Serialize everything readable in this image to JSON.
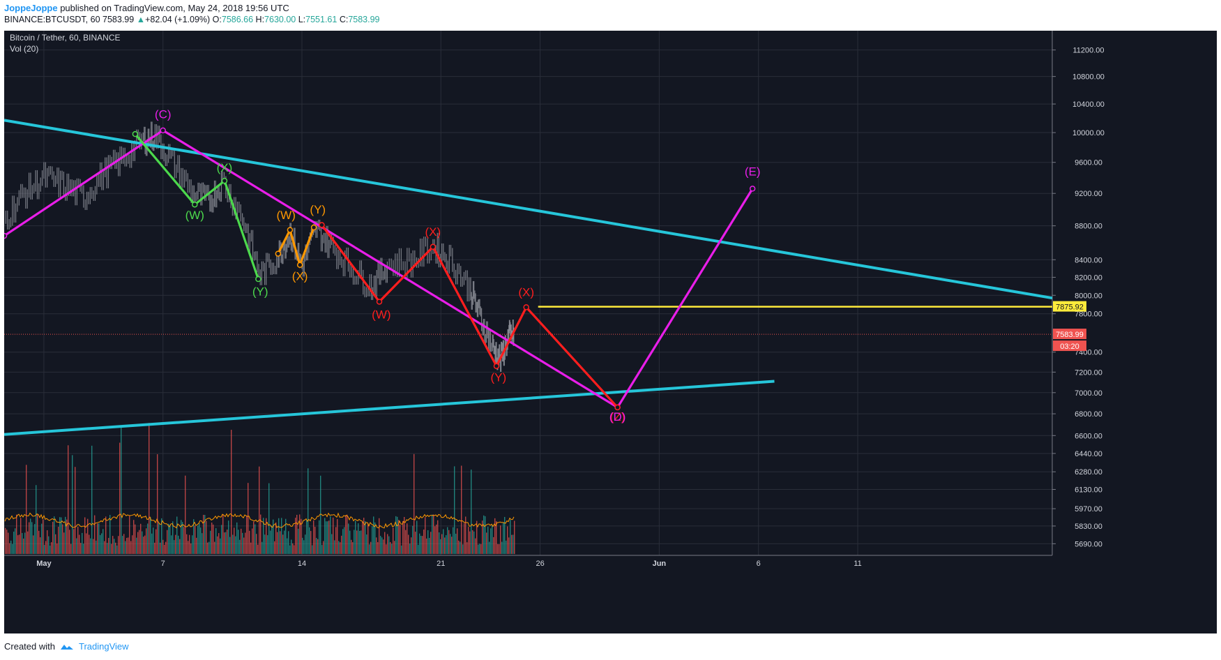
{
  "header": {
    "author": "JoppeJoppe",
    "published": "published on TradingView.com, May 24, 2018 19:56 UTC",
    "symbol": "BINANCE:BTCUSDT, 60",
    "last": "7583.99",
    "change_arrow": "▲",
    "change": "+82.04 (+1.09%)",
    "o_label": "O:",
    "o": "7586.66",
    "h_label": "H:",
    "h": "7630.00",
    "l_label": "L:",
    "l": "7551.61",
    "c_label": "C:",
    "c": "7583.99"
  },
  "chart_data": {
    "type": "line",
    "title": "Bitcoin / Tether, 60, BINANCE",
    "indicator": "Vol (20)",
    "background": "#131722",
    "grid": true,
    "y_axis": {
      "scale": "log",
      "range": [
        5600,
        11500
      ],
      "ticks": [
        11200,
        10800,
        10400,
        10000,
        9600,
        9200,
        8800,
        8400,
        8200,
        8000,
        7800,
        7400,
        7200,
        7000,
        6800,
        6600,
        6440,
        6280,
        6130,
        5970,
        5830,
        5690
      ],
      "tick_labels": [
        "11200.00",
        "10800.00",
        "10400.00",
        "10000.00",
        "9600.00",
        "9200.00",
        "8800.00",
        "8400.00",
        "8200.00",
        "8000.00",
        "7800.00",
        "7400.00",
        "7200.00",
        "7000.00",
        "6800.00",
        "6600.00",
        "6440.00",
        "6280.00",
        "6130.00",
        "5970.00",
        "5830.00",
        "5690.00"
      ]
    },
    "x_axis": {
      "unit": "days from May 1, 2018",
      "range": [
        -2.0,
        50.8
      ],
      "ticks": [
        {
          "x": 0,
          "label": "May",
          "bold": true
        },
        {
          "x": 6,
          "label": "7"
        },
        {
          "x": 13,
          "label": "14"
        },
        {
          "x": 20,
          "label": "21"
        },
        {
          "x": 25,
          "label": "26"
        },
        {
          "x": 31,
          "label": "Jun",
          "bold": true
        },
        {
          "x": 36,
          "label": "6"
        },
        {
          "x": 41,
          "label": "11"
        }
      ]
    },
    "price_markers": {
      "hline": {
        "value": 7875.92,
        "label": "7875.92",
        "color": "#ffeb3b"
      },
      "last": {
        "value": 7583.99,
        "label": "7583.99",
        "countdown": "03:20",
        "color": "#ef5350"
      }
    },
    "series": [
      {
        "id": "trend_upper",
        "color": "#26c6da",
        "points": [
          [
            -2.0,
            10170
          ],
          [
            50.8,
            7970
          ]
        ]
      },
      {
        "id": "trend_lower",
        "color": "#26c6da",
        "points": [
          [
            -2.0,
            6610
          ],
          [
            36.8,
            7110
          ]
        ]
      },
      {
        "id": "yellow_line",
        "color": "#ffeb3b",
        "points": [
          [
            24.9,
            7875.92
          ],
          [
            50.8,
            7875.92
          ]
        ]
      },
      {
        "id": "wave_magenta",
        "color": "#e91ee9",
        "points": [
          [
            -2.0,
            8680
          ],
          [
            6.0,
            10030
          ],
          [
            28.9,
            6860
          ],
          [
            35.7,
            9260
          ]
        ]
      },
      {
        "id": "wave_green",
        "color": "#4cd94c",
        "points": [
          [
            4.6,
            9980
          ],
          [
            7.6,
            9060
          ],
          [
            9.1,
            9360
          ],
          [
            10.8,
            8180
          ]
        ]
      },
      {
        "id": "wave_orange",
        "color": "#ff9800",
        "points": [
          [
            11.8,
            8470
          ],
          [
            12.4,
            8750
          ],
          [
            12.9,
            8340
          ],
          [
            13.6,
            8780
          ]
        ]
      },
      {
        "id": "wave_red",
        "color": "#ff1e1e",
        "points": [
          [
            14.0,
            8810
          ],
          [
            16.9,
            7930
          ],
          [
            19.6,
            8550
          ],
          [
            22.8,
            7260
          ],
          [
            24.3,
            7870
          ],
          [
            28.9,
            6860
          ]
        ]
      },
      {
        "id": "price",
        "color": "#b2b5be",
        "points": [
          [
            -2.0,
            8880
          ],
          [
            -1.0,
            9200
          ],
          [
            0.0,
            9400
          ],
          [
            1.0,
            9300
          ],
          [
            2.0,
            9150
          ],
          [
            3.0,
            9450
          ],
          [
            4.0,
            9650
          ],
          [
            5.0,
            9900
          ],
          [
            5.6,
            9960
          ],
          [
            6.5,
            9600
          ],
          [
            7.5,
            9200
          ],
          [
            8.3,
            9100
          ],
          [
            9.0,
            9350
          ],
          [
            10.0,
            8900
          ],
          [
            10.9,
            8220
          ],
          [
            11.8,
            8450
          ],
          [
            12.4,
            8720
          ],
          [
            13.0,
            8330
          ],
          [
            13.7,
            8760
          ],
          [
            14.5,
            8550
          ],
          [
            15.5,
            8300
          ],
          [
            16.5,
            8100
          ],
          [
            17.3,
            8350
          ],
          [
            18.5,
            8380
          ],
          [
            19.6,
            8560
          ],
          [
            20.5,
            8400
          ],
          [
            21.5,
            8050
          ],
          [
            22.0,
            7750
          ],
          [
            22.6,
            7450
          ],
          [
            23.0,
            7320
          ],
          [
            23.4,
            7560
          ],
          [
            23.7,
            7580
          ]
        ]
      }
    ],
    "volume": {
      "x_range": [
        -2.0,
        23.7
      ],
      "ma_color": "#ff9800",
      "up_color": "#26a69a",
      "down_color": "#ef5350"
    },
    "annotations": [
      {
        "text": "(C)",
        "x": 6.0,
        "y": 10200,
        "color": "#e91ee9"
      },
      {
        "text": "(X)",
        "x": 9.1,
        "y": 9480,
        "color": "#4cd94c"
      },
      {
        "text": "(W)",
        "x": 7.6,
        "y": 8880,
        "color": "#4cd94c"
      },
      {
        "text": "(Y)",
        "x": 10.9,
        "y": 8000,
        "color": "#4cd94c"
      },
      {
        "text": "(W)",
        "x": 12.2,
        "y": 8880,
        "color": "#ff9800"
      },
      {
        "text": "(Y)",
        "x": 13.8,
        "y": 8950,
        "color": "#ff9800"
      },
      {
        "text": "(X)",
        "x": 12.9,
        "y": 8170,
        "color": "#ff9800"
      },
      {
        "text": "(X)",
        "x": 19.6,
        "y": 8680,
        "color": "#ff1e1e"
      },
      {
        "text": "(W)",
        "x": 17.0,
        "y": 7750,
        "color": "#ff1e1e"
      },
      {
        "text": "(X)",
        "x": 24.3,
        "y": 7990,
        "color": "#ff1e1e"
      },
      {
        "text": "(Y)",
        "x": 22.9,
        "y": 7110,
        "color": "#ff1e1e"
      },
      {
        "text": "(Z)",
        "x": 28.9,
        "y": 6735,
        "color": "#ff1e1e"
      },
      {
        "text": "(D)",
        "x": 28.9,
        "y": 6735,
        "color": "#e91ee9"
      },
      {
        "text": "(E)",
        "x": 35.7,
        "y": 9430,
        "color": "#e91ee9"
      }
    ]
  },
  "footer": {
    "created_with": "Created with",
    "brand": "TradingView"
  }
}
